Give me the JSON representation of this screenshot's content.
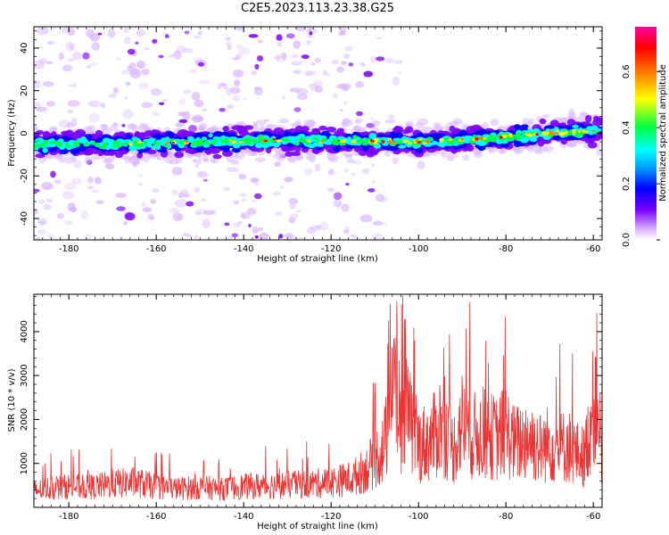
{
  "title": "C2E5.2023.113.23.38.G25",
  "chart_data": [
    {
      "type": "heatmap",
      "xlabel": "Height of straight line (km)",
      "ylabel": "Frequency (Hz)",
      "xlim": [
        -188,
        -58
      ],
      "ylim": [
        -50,
        50
      ],
      "xticks": [
        -180,
        -160,
        -140,
        -120,
        -100,
        -80,
        -60
      ],
      "yticks": [
        -40,
        -20,
        0,
        20,
        40
      ],
      "colorbar": {
        "label": "Normalized spectral amplitude",
        "range": [
          0,
          0.76
        ],
        "ticks": [
          0.0,
          0.2,
          0.4,
          0.6
        ],
        "colors": [
          "#ffffff",
          "#d9b3ff",
          "#7a00ff",
          "#0000ff",
          "#00ffff",
          "#00ff40",
          "#ffff00",
          "#ff8000",
          "#ff0000",
          "#ff00a0"
        ]
      },
      "ridge": {
        "x": [
          -188,
          -170,
          -150,
          -130,
          -110,
          -100,
          -90,
          -80,
          -70,
          -60
        ],
        "center_hz": [
          -5,
          -5,
          -4,
          -3,
          -4,
          -4,
          -3,
          -2,
          0,
          1
        ]
      }
    },
    {
      "type": "line",
      "xlabel": "Height of straight line (km)",
      "ylabel": "SNR (10 * v/v)",
      "xlim": [
        -188,
        -58
      ],
      "ylim": [
        0,
        4850
      ],
      "xticks": [
        -180,
        -160,
        -140,
        -120,
        -100,
        -80,
        -60
      ],
      "yticks": [
        1000,
        2000,
        3000,
        4000
      ],
      "series": [
        {
          "color": "#ee3333",
          "x": [
            -188,
            -185,
            -180,
            -175,
            -170,
            -165,
            -160,
            -155,
            -150,
            -145,
            -140,
            -135,
            -130,
            -125,
            -120,
            -115,
            -112,
            -110,
            -108,
            -106,
            -105,
            -104,
            -103,
            -100,
            -97,
            -95,
            -92,
            -90,
            -88,
            -85,
            -82,
            -80,
            -78,
            -76,
            -75,
            -72,
            -70,
            -68,
            -66,
            -64,
            -62,
            -60,
            -59,
            -58
          ],
          "values": [
            400,
            450,
            500,
            480,
            560,
            600,
            500,
            450,
            480,
            440,
            500,
            520,
            540,
            560,
            600,
            700,
            900,
            1150,
            1400,
            2500,
            3200,
            1700,
            2300,
            1500,
            1600,
            2000,
            1400,
            2050,
            1700,
            1750,
            1650,
            1850,
            1500,
            1600,
            1700,
            1400,
            1550,
            1400,
            1500,
            1300,
            1200,
            2400,
            3000,
            700
          ]
        }
      ]
    }
  ]
}
